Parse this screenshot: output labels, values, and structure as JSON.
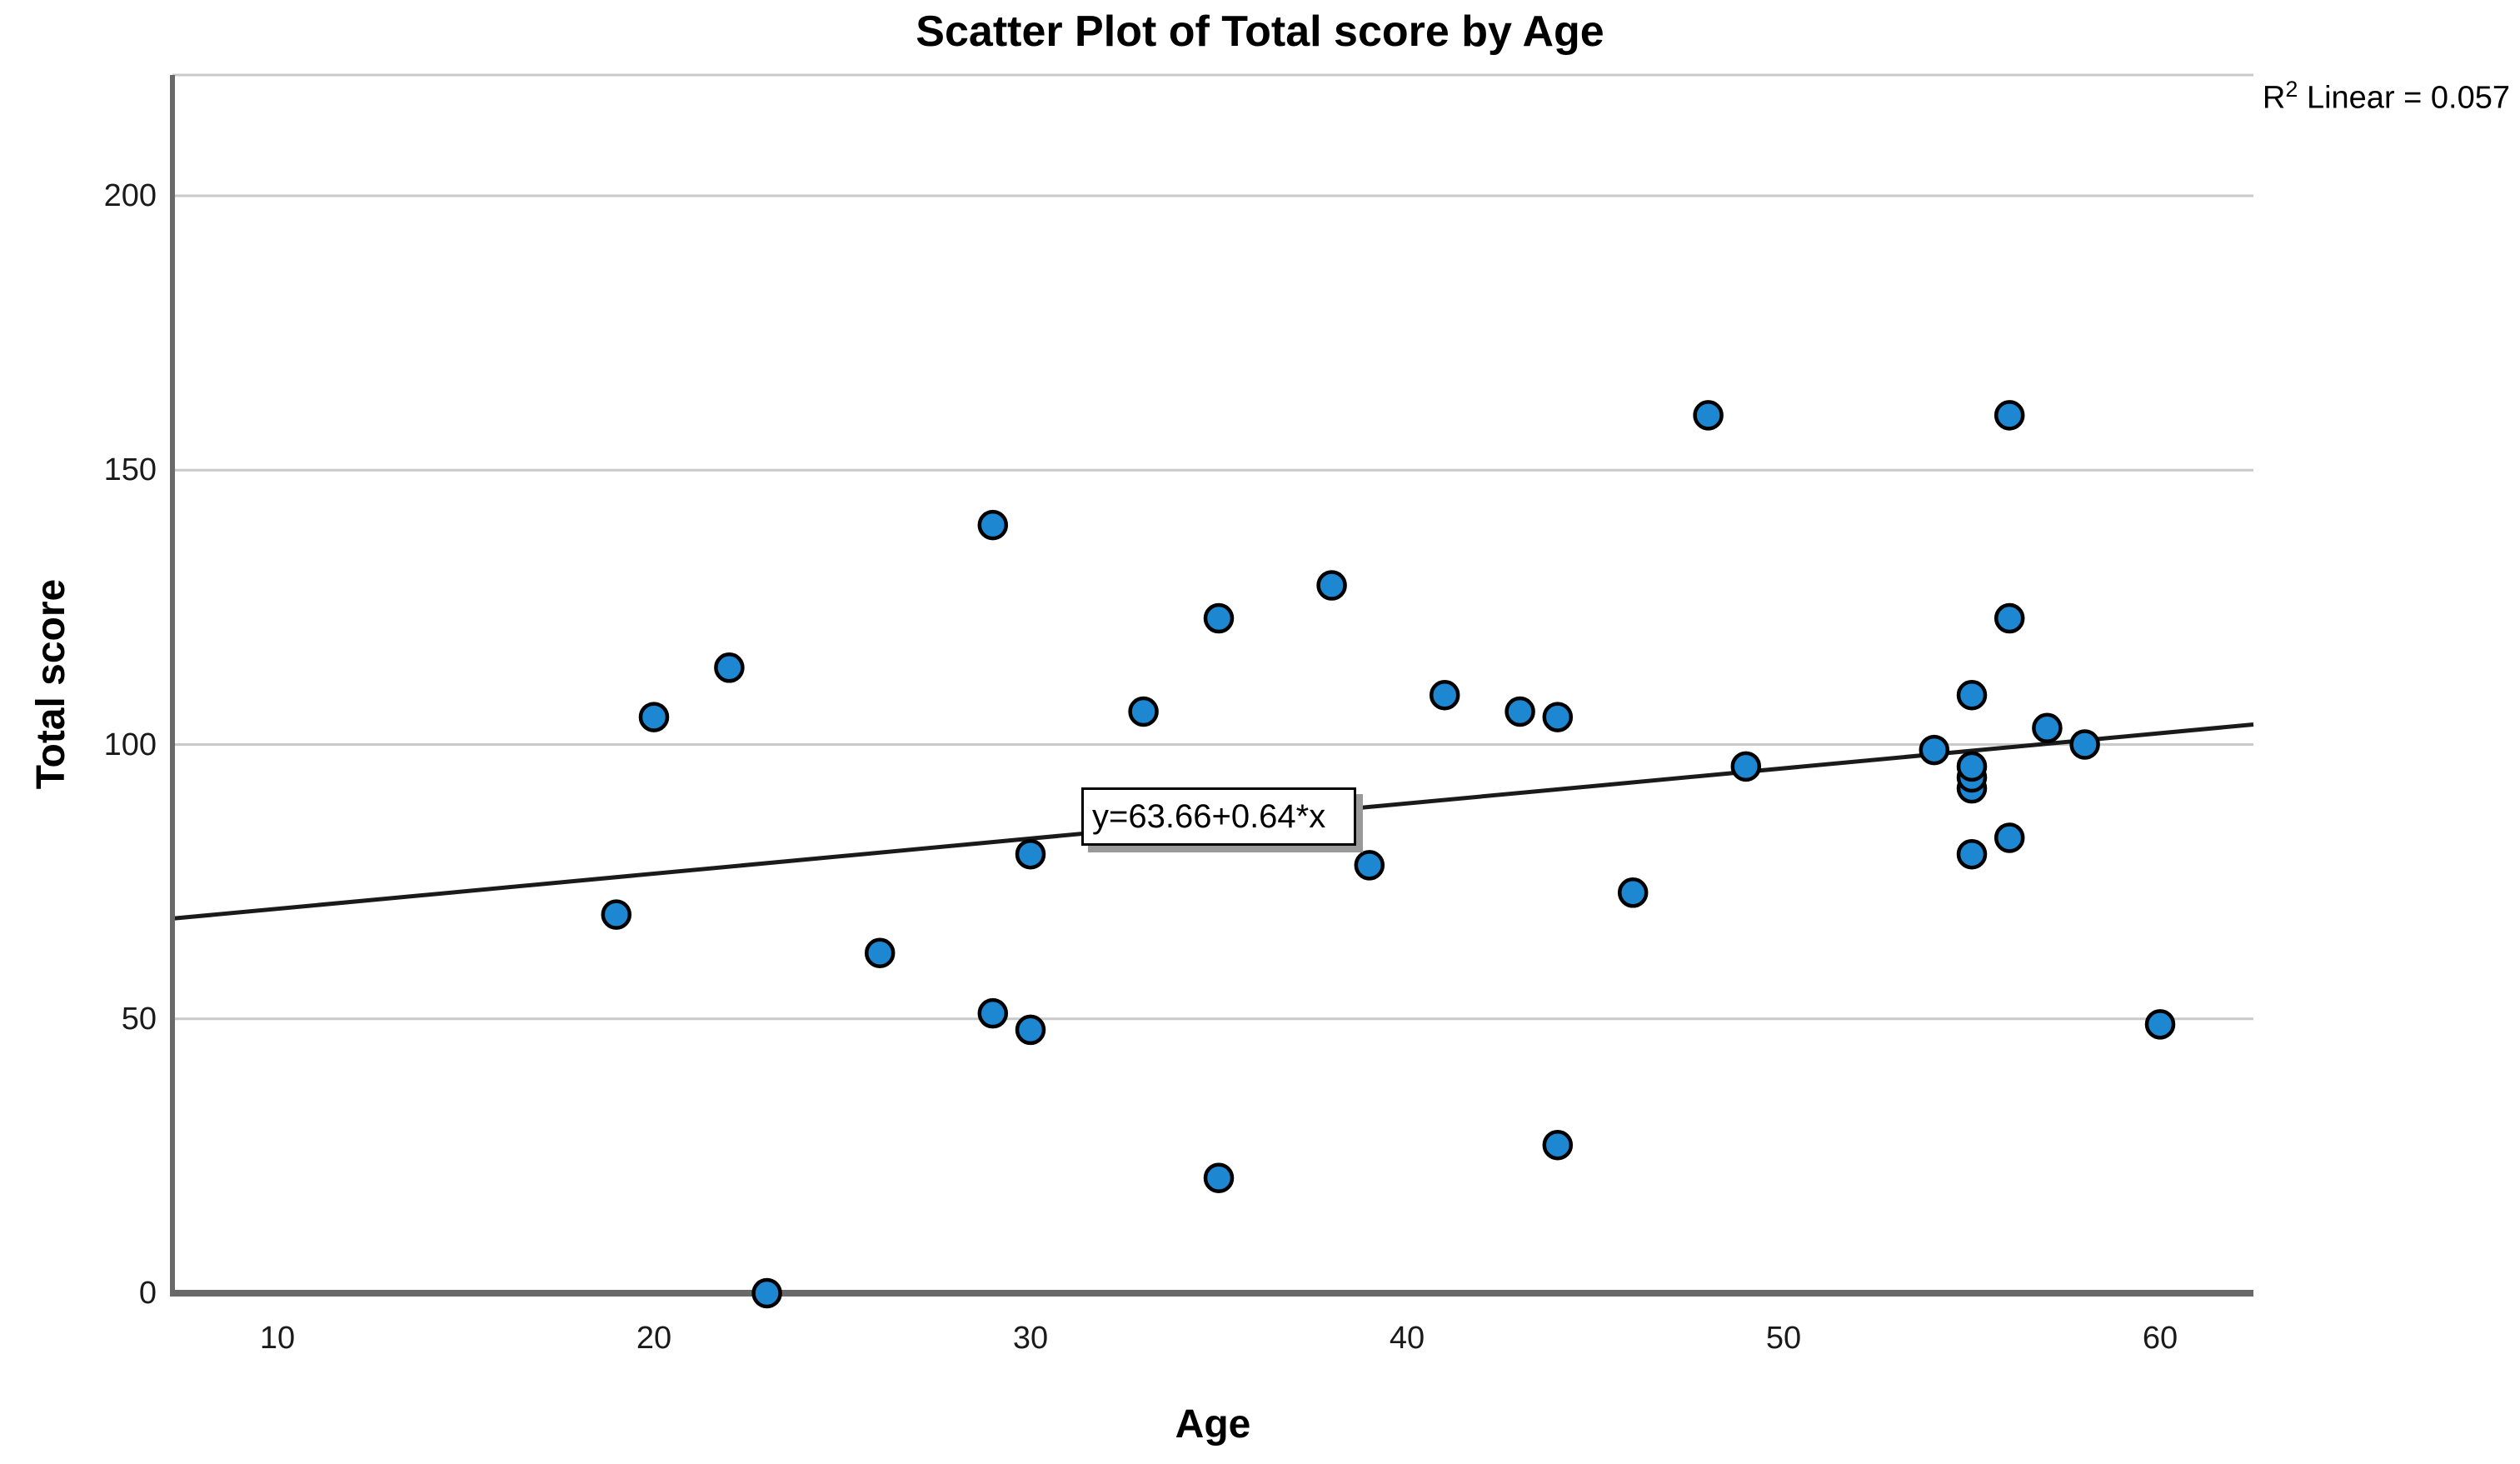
{
  "chart_data": {
    "type": "scatter",
    "title": "Scatter Plot of Total score by Age",
    "xlabel": "Age",
    "ylabel": "Total score",
    "r2_annotation": {
      "base": "R",
      "sup": "2",
      "rest": " Linear = 0.057"
    },
    "regression": {
      "equation_label": "y=63.66+0.64*x",
      "intercept": 63.66,
      "slope": 0.64
    },
    "x_ticks": [
      10,
      20,
      30,
      40,
      50,
      60
    ],
    "y_ticks": [
      0,
      50,
      100,
      150,
      200
    ],
    "xlim": [
      7.2,
      62.5
    ],
    "ylim": [
      0,
      222
    ],
    "grid": true,
    "legend": "none",
    "marker_color": "#1E87D2",
    "marker_outline": "#000000",
    "gridline_color": "#c9c9c9",
    "axis_color": "#696969",
    "line_color": "#1a1a1a",
    "points": [
      {
        "x": 19,
        "y": 69
      },
      {
        "x": 20,
        "y": 105
      },
      {
        "x": 22,
        "y": 114
      },
      {
        "x": 23,
        "y": 0
      },
      {
        "x": 26,
        "y": 62
      },
      {
        "x": 29,
        "y": 51
      },
      {
        "x": 29,
        "y": 140
      },
      {
        "x": 30,
        "y": 48
      },
      {
        "x": 30,
        "y": 80
      },
      {
        "x": 33,
        "y": 106
      },
      {
        "x": 35,
        "y": 21
      },
      {
        "x": 35,
        "y": 123
      },
      {
        "x": 38,
        "y": 129
      },
      {
        "x": 39,
        "y": 78
      },
      {
        "x": 41,
        "y": 109
      },
      {
        "x": 43,
        "y": 106
      },
      {
        "x": 44,
        "y": 27
      },
      {
        "x": 44,
        "y": 105
      },
      {
        "x": 46,
        "y": 73
      },
      {
        "x": 48,
        "y": 160
      },
      {
        "x": 49,
        "y": 96
      },
      {
        "x": 54,
        "y": 99
      },
      {
        "x": 55,
        "y": 80
      },
      {
        "x": 55,
        "y": 92
      },
      {
        "x": 55,
        "y": 94
      },
      {
        "x": 55,
        "y": 96
      },
      {
        "x": 55,
        "y": 109
      },
      {
        "x": 56,
        "y": 83
      },
      {
        "x": 56,
        "y": 123
      },
      {
        "x": 56,
        "y": 160
      },
      {
        "x": 57,
        "y": 103
      },
      {
        "x": 58,
        "y": 100
      },
      {
        "x": 60,
        "y": 49
      }
    ]
  }
}
